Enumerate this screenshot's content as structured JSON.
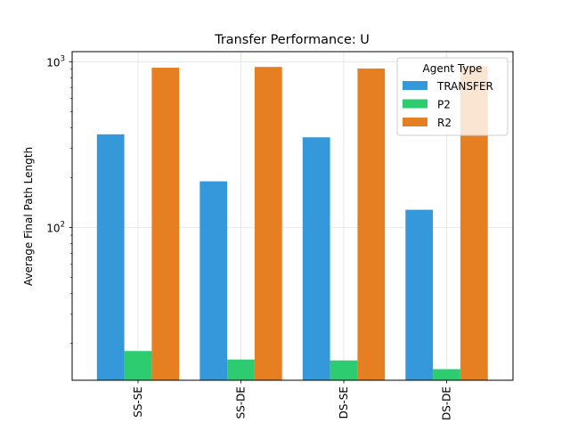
{
  "chart_data": {
    "type": "bar",
    "title": "Transfer Performance: U",
    "xlabel": "",
    "ylabel": "Average Final Path Length",
    "yscale": "log",
    "ylim": [
      12,
      1150
    ],
    "yticks": [
      {
        "value": 100,
        "base": "10",
        "exp": "2"
      },
      {
        "value": 1000,
        "base": "10",
        "exp": "3"
      }
    ],
    "categories": [
      "SS-SE",
      "SS-DE",
      "DS-SE",
      "DS-DE"
    ],
    "series": [
      {
        "name": "TRANSFER",
        "color": "#3498db",
        "values": [
          365,
          190,
          350,
          128
        ]
      },
      {
        "name": "P2",
        "color": "#2ecc71",
        "values": [
          18,
          16,
          15.8,
          14
        ]
      },
      {
        "name": "R2",
        "color": "#e67e22",
        "values": [
          920,
          930,
          910,
          940
        ]
      }
    ],
    "grid": true,
    "legend": {
      "title": "Agent Type",
      "position": "top-right"
    }
  }
}
